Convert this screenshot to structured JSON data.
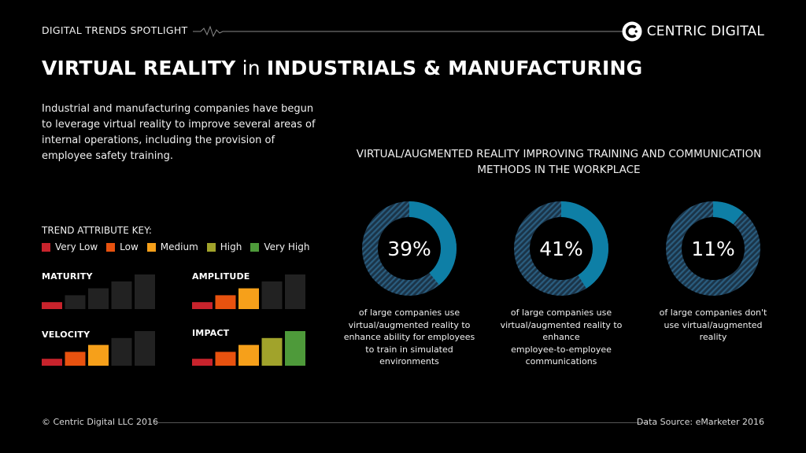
{
  "header": {
    "spotlight": "DIGITAL TRENDS SPOTLIGHT",
    "brand": "CENTRIC DIGITAL",
    "logo_icon": "centric-c-logo-icon"
  },
  "title": {
    "part1": "VIRTUAL REALITY",
    "part2": " in ",
    "part3": "INDUSTRIALS & MANUFACTURING"
  },
  "intro": "Industrial and manufacturing companies have begun to leverage virtual reality to improve several areas of internal operations, including the provision of employee safety training.",
  "trend_key": {
    "heading": "TREND ATTRIBUTE KEY:",
    "levels": [
      {
        "label": "Very Low",
        "color": "#c8232c"
      },
      {
        "label": "Low",
        "color": "#e8520f"
      },
      {
        "label": "Medium",
        "color": "#f6a01a"
      },
      {
        "label": "High",
        "color": "#a1a32b"
      },
      {
        "label": "Very High",
        "color": "#4e9a3a"
      }
    ],
    "inactive_color": "#222222"
  },
  "chart_data": [
    {
      "type": "bar",
      "title": "MATURITY",
      "categories": [
        "Very Low",
        "Low",
        "Medium",
        "High",
        "Very High"
      ],
      "values": [
        1,
        2,
        3,
        4,
        5
      ],
      "level": 1
    },
    {
      "type": "bar",
      "title": "AMPLITUDE",
      "categories": [
        "Very Low",
        "Low",
        "Medium",
        "High",
        "Very High"
      ],
      "values": [
        1,
        2,
        3,
        4,
        5
      ],
      "level": 3
    },
    {
      "type": "bar",
      "title": "VELOCITY",
      "categories": [
        "Very Low",
        "Low",
        "Medium",
        "High",
        "Very High"
      ],
      "values": [
        1,
        2,
        3,
        4,
        5
      ],
      "level": 3
    },
    {
      "type": "bar",
      "title": "IMPACT",
      "categories": [
        "Very Low",
        "Low",
        "Medium",
        "High",
        "Very High"
      ],
      "values": [
        1,
        2,
        3,
        4,
        5
      ],
      "level": 5
    },
    {
      "type": "pie",
      "title": "VIRTUAL/AUGMENTED REALITY IMPROVING TRAINING AND COMMUNICATION METHODS IN THE WORKPLACE",
      "donuts": [
        {
          "value": 39,
          "label": "39%",
          "caption": [
            "of large companies use",
            "virtual/augmented reality to",
            "enhance ability for employees",
            "to train in simulated",
            "environments"
          ]
        },
        {
          "value": 41,
          "label": "41%",
          "caption": [
            "of large companies use",
            "virtual/augmented reality to",
            "enhance",
            "employee-to-employee",
            "communications"
          ]
        },
        {
          "value": 11,
          "label": "11%",
          "caption": [
            "of large companies don't",
            "use virtual/augmented",
            "reality"
          ]
        }
      ],
      "highlight_color": "#0e7fa6",
      "remainder_color": "#2a5d7f"
    }
  ],
  "footer": {
    "copyright": "© Centric Digital LLC 2016",
    "source": "Data Source: eMarketer 2016"
  }
}
